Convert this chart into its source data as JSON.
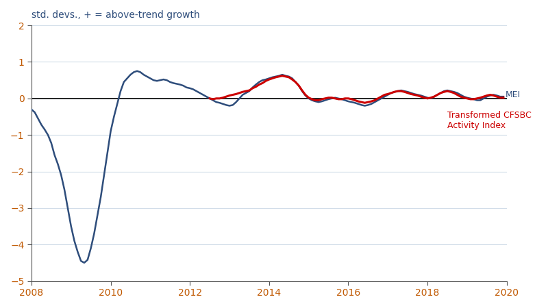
{
  "title": "std. devs., + = above-trend growth",
  "title_color": "#3a5a8c",
  "xlim": [
    2008.0,
    2020.0
  ],
  "ylim": [
    -5.0,
    2.0
  ],
  "yticks": [
    -5,
    -4,
    -3,
    -2,
    -1,
    0,
    1,
    2
  ],
  "xticks": [
    2008,
    2010,
    2012,
    2014,
    2016,
    2018,
    2020
  ],
  "mei_color": "#2e4d7b",
  "cfsbc_color": "#cc0000",
  "mei_label": "MEI",
  "cfsbc_label": "Transformed CFSBC\nActivity Index",
  "mei_lw": 1.8,
  "cfsbc_lw": 2.2,
  "mei_data": [
    [
      2008.0,
      -0.3
    ],
    [
      2008.083,
      -0.38
    ],
    [
      2008.167,
      -0.55
    ],
    [
      2008.25,
      -0.72
    ],
    [
      2008.333,
      -0.85
    ],
    [
      2008.417,
      -1.0
    ],
    [
      2008.5,
      -1.22
    ],
    [
      2008.583,
      -1.55
    ],
    [
      2008.667,
      -1.8
    ],
    [
      2008.75,
      -2.1
    ],
    [
      2008.833,
      -2.5
    ],
    [
      2008.917,
      -3.0
    ],
    [
      2009.0,
      -3.5
    ],
    [
      2009.083,
      -3.9
    ],
    [
      2009.167,
      -4.2
    ],
    [
      2009.25,
      -4.45
    ],
    [
      2009.333,
      -4.5
    ],
    [
      2009.417,
      -4.42
    ],
    [
      2009.5,
      -4.1
    ],
    [
      2009.583,
      -3.7
    ],
    [
      2009.667,
      -3.2
    ],
    [
      2009.75,
      -2.7
    ],
    [
      2009.833,
      -2.1
    ],
    [
      2009.917,
      -1.5
    ],
    [
      2010.0,
      -0.9
    ],
    [
      2010.083,
      -0.5
    ],
    [
      2010.167,
      -0.15
    ],
    [
      2010.25,
      0.2
    ],
    [
      2010.333,
      0.45
    ],
    [
      2010.417,
      0.55
    ],
    [
      2010.5,
      0.65
    ],
    [
      2010.583,
      0.72
    ],
    [
      2010.667,
      0.75
    ],
    [
      2010.75,
      0.72
    ],
    [
      2010.833,
      0.65
    ],
    [
      2010.917,
      0.6
    ],
    [
      2011.0,
      0.55
    ],
    [
      2011.083,
      0.5
    ],
    [
      2011.167,
      0.48
    ],
    [
      2011.25,
      0.5
    ],
    [
      2011.333,
      0.52
    ],
    [
      2011.417,
      0.5
    ],
    [
      2011.5,
      0.45
    ],
    [
      2011.583,
      0.42
    ],
    [
      2011.667,
      0.4
    ],
    [
      2011.75,
      0.38
    ],
    [
      2011.833,
      0.35
    ],
    [
      2011.917,
      0.3
    ],
    [
      2012.0,
      0.28
    ],
    [
      2012.083,
      0.25
    ],
    [
      2012.167,
      0.2
    ],
    [
      2012.25,
      0.15
    ],
    [
      2012.333,
      0.1
    ],
    [
      2012.417,
      0.05
    ],
    [
      2012.5,
      0.0
    ],
    [
      2012.583,
      -0.05
    ],
    [
      2012.667,
      -0.1
    ],
    [
      2012.75,
      -0.12
    ],
    [
      2012.833,
      -0.15
    ],
    [
      2012.917,
      -0.18
    ],
    [
      2013.0,
      -0.2
    ],
    [
      2013.083,
      -0.18
    ],
    [
      2013.167,
      -0.1
    ],
    [
      2013.25,
      0.0
    ],
    [
      2013.333,
      0.1
    ],
    [
      2013.417,
      0.15
    ],
    [
      2013.5,
      0.2
    ],
    [
      2013.583,
      0.3
    ],
    [
      2013.667,
      0.38
    ],
    [
      2013.75,
      0.45
    ],
    [
      2013.833,
      0.5
    ],
    [
      2013.917,
      0.52
    ],
    [
      2014.0,
      0.55
    ],
    [
      2014.083,
      0.58
    ],
    [
      2014.167,
      0.6
    ],
    [
      2014.25,
      0.62
    ],
    [
      2014.333,
      0.65
    ],
    [
      2014.417,
      0.62
    ],
    [
      2014.5,
      0.6
    ],
    [
      2014.583,
      0.55
    ],
    [
      2014.667,
      0.45
    ],
    [
      2014.75,
      0.35
    ],
    [
      2014.833,
      0.2
    ],
    [
      2014.917,
      0.08
    ],
    [
      2015.0,
      0.0
    ],
    [
      2015.083,
      -0.05
    ],
    [
      2015.167,
      -0.08
    ],
    [
      2015.25,
      -0.1
    ],
    [
      2015.333,
      -0.08
    ],
    [
      2015.417,
      -0.05
    ],
    [
      2015.5,
      -0.02
    ],
    [
      2015.583,
      0.0
    ],
    [
      2015.667,
      0.02
    ],
    [
      2015.75,
      0.0
    ],
    [
      2015.833,
      -0.02
    ],
    [
      2015.917,
      -0.05
    ],
    [
      2016.0,
      -0.08
    ],
    [
      2016.083,
      -0.1
    ],
    [
      2016.167,
      -0.12
    ],
    [
      2016.25,
      -0.15
    ],
    [
      2016.333,
      -0.18
    ],
    [
      2016.417,
      -0.2
    ],
    [
      2016.5,
      -0.18
    ],
    [
      2016.583,
      -0.15
    ],
    [
      2016.667,
      -0.1
    ],
    [
      2016.75,
      -0.05
    ],
    [
      2016.833,
      0.0
    ],
    [
      2016.917,
      0.05
    ],
    [
      2017.0,
      0.1
    ],
    [
      2017.083,
      0.15
    ],
    [
      2017.167,
      0.18
    ],
    [
      2017.25,
      0.2
    ],
    [
      2017.333,
      0.22
    ],
    [
      2017.417,
      0.2
    ],
    [
      2017.5,
      0.18
    ],
    [
      2017.583,
      0.15
    ],
    [
      2017.667,
      0.12
    ],
    [
      2017.75,
      0.1
    ],
    [
      2017.833,
      0.08
    ],
    [
      2017.917,
      0.05
    ],
    [
      2018.0,
      0.02
    ],
    [
      2018.083,
      0.0
    ],
    [
      2018.167,
      0.05
    ],
    [
      2018.25,
      0.1
    ],
    [
      2018.333,
      0.15
    ],
    [
      2018.417,
      0.2
    ],
    [
      2018.5,
      0.22
    ],
    [
      2018.583,
      0.2
    ],
    [
      2018.667,
      0.18
    ],
    [
      2018.75,
      0.15
    ],
    [
      2018.833,
      0.1
    ],
    [
      2018.917,
      0.05
    ],
    [
      2019.0,
      0.02
    ],
    [
      2019.083,
      0.0
    ],
    [
      2019.167,
      -0.02
    ],
    [
      2019.25,
      -0.05
    ],
    [
      2019.333,
      -0.05
    ],
    [
      2019.417,
      0.0
    ],
    [
      2019.5,
      0.05
    ],
    [
      2019.583,
      0.08
    ],
    [
      2019.667,
      0.1
    ],
    [
      2019.75,
      0.08
    ],
    [
      2019.833,
      0.05
    ],
    [
      2019.917,
      0.05
    ]
  ],
  "cfsbc_data": [
    [
      2012.5,
      0.0
    ],
    [
      2012.583,
      -0.02
    ],
    [
      2012.667,
      0.0
    ],
    [
      2012.75,
      0.0
    ],
    [
      2012.833,
      0.02
    ],
    [
      2012.917,
      0.05
    ],
    [
      2013.0,
      0.08
    ],
    [
      2013.083,
      0.1
    ],
    [
      2013.167,
      0.12
    ],
    [
      2013.25,
      0.15
    ],
    [
      2013.333,
      0.18
    ],
    [
      2013.417,
      0.2
    ],
    [
      2013.5,
      0.22
    ],
    [
      2013.583,
      0.28
    ],
    [
      2013.667,
      0.32
    ],
    [
      2013.75,
      0.38
    ],
    [
      2013.833,
      0.42
    ],
    [
      2013.917,
      0.48
    ],
    [
      2014.0,
      0.52
    ],
    [
      2014.083,
      0.55
    ],
    [
      2014.167,
      0.58
    ],
    [
      2014.25,
      0.6
    ],
    [
      2014.333,
      0.62
    ],
    [
      2014.417,
      0.6
    ],
    [
      2014.5,
      0.58
    ],
    [
      2014.583,
      0.52
    ],
    [
      2014.667,
      0.45
    ],
    [
      2014.75,
      0.35
    ],
    [
      2014.833,
      0.22
    ],
    [
      2014.917,
      0.1
    ],
    [
      2015.0,
      0.02
    ],
    [
      2015.083,
      -0.02
    ],
    [
      2015.167,
      -0.05
    ],
    [
      2015.25,
      -0.05
    ],
    [
      2015.333,
      -0.02
    ],
    [
      2015.417,
      0.0
    ],
    [
      2015.5,
      0.02
    ],
    [
      2015.583,
      0.02
    ],
    [
      2015.667,
      0.0
    ],
    [
      2015.75,
      -0.02
    ],
    [
      2015.833,
      -0.02
    ],
    [
      2015.917,
      0.0
    ],
    [
      2016.0,
      0.0
    ],
    [
      2016.083,
      -0.02
    ],
    [
      2016.167,
      -0.05
    ],
    [
      2016.25,
      -0.08
    ],
    [
      2016.333,
      -0.1
    ],
    [
      2016.417,
      -0.12
    ],
    [
      2016.5,
      -0.1
    ],
    [
      2016.583,
      -0.08
    ],
    [
      2016.667,
      -0.05
    ],
    [
      2016.75,
      0.0
    ],
    [
      2016.833,
      0.05
    ],
    [
      2016.917,
      0.1
    ],
    [
      2017.0,
      0.12
    ],
    [
      2017.083,
      0.15
    ],
    [
      2017.167,
      0.18
    ],
    [
      2017.25,
      0.2
    ],
    [
      2017.333,
      0.2
    ],
    [
      2017.417,
      0.18
    ],
    [
      2017.5,
      0.15
    ],
    [
      2017.583,
      0.12
    ],
    [
      2017.667,
      0.1
    ],
    [
      2017.75,
      0.08
    ],
    [
      2017.833,
      0.05
    ],
    [
      2017.917,
      0.02
    ],
    [
      2018.0,
      0.0
    ],
    [
      2018.083,
      0.02
    ],
    [
      2018.167,
      0.05
    ],
    [
      2018.25,
      0.1
    ],
    [
      2018.333,
      0.15
    ],
    [
      2018.417,
      0.18
    ],
    [
      2018.5,
      0.2
    ],
    [
      2018.583,
      0.18
    ],
    [
      2018.667,
      0.15
    ],
    [
      2018.75,
      0.1
    ],
    [
      2018.833,
      0.05
    ],
    [
      2018.917,
      0.02
    ],
    [
      2019.0,
      0.0
    ],
    [
      2019.083,
      -0.02
    ],
    [
      2019.167,
      -0.02
    ],
    [
      2019.25,
      0.0
    ],
    [
      2019.333,
      0.02
    ],
    [
      2019.417,
      0.05
    ],
    [
      2019.5,
      0.08
    ],
    [
      2019.583,
      0.1
    ],
    [
      2019.667,
      0.08
    ],
    [
      2019.75,
      0.05
    ],
    [
      2019.833,
      0.02
    ],
    [
      2019.917,
      0.02
    ]
  ],
  "grid_color": "#d0dce8",
  "zero_line_color": "#000000",
  "axis_color": "#555555",
  "tick_label_color": "#c05800",
  "background_color": "#ffffff"
}
